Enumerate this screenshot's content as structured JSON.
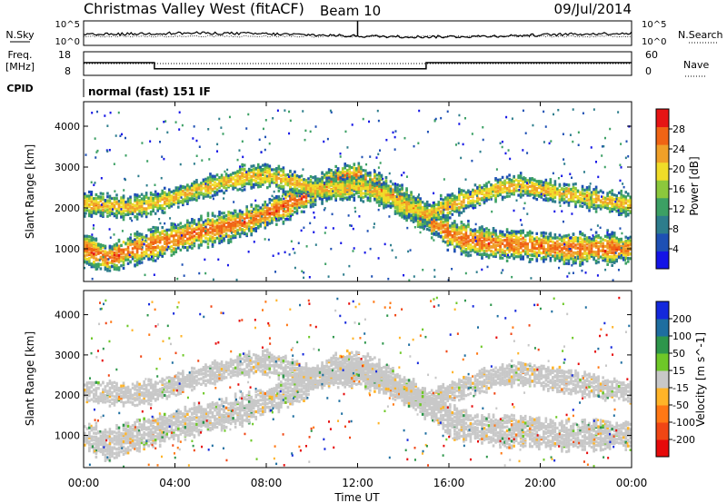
{
  "header": {
    "station": "Christmas Valley West (fitACF)",
    "beam": "Beam 10",
    "date": "09/Jul/2014"
  },
  "noise_panel": {
    "left_label": "N.Sky",
    "right_label": "N.Search",
    "left_ticks": [
      "10^5",
      "10^0"
    ],
    "right_ticks": [
      "10^5",
      "10^0"
    ]
  },
  "freq_panel": {
    "left_label_1": "Freq.",
    "left_label_2": "[MHz]",
    "left_ticks": [
      "18",
      "8"
    ],
    "right_label": "Nave",
    "right_ticks": [
      "60",
      "0"
    ],
    "freq_steps": [
      {
        "start_hour": 0.0,
        "end_hour": 3.1,
        "freq": 13.4
      },
      {
        "start_hour": 3.1,
        "end_hour": 15.0,
        "freq": 10.8
      },
      {
        "start_hour": 15.0,
        "end_hour": 24.0,
        "freq": 13.4
      }
    ]
  },
  "cpid": {
    "label": "CPID",
    "program": "normal (fast) 151 IF"
  },
  "chart_data": [
    {
      "type": "heatmap",
      "panel": "power",
      "ylabel": "Slant Range [km]",
      "yticks": [
        1000,
        2000,
        3000,
        4000
      ],
      "ylim": [
        200,
        4600
      ],
      "colorbar_label": "Power [dB]",
      "colorbar_ticks": [
        4,
        8,
        12,
        16,
        20,
        24,
        28
      ],
      "colorbar_range": [
        0,
        32
      ],
      "colors": [
        "#1414e6",
        "#1e50b4",
        "#2d7d8c",
        "#3ca064",
        "#8cc83c",
        "#f0dc28",
        "#f0a028",
        "#f06414",
        "#e61414"
      ],
      "bands": [
        {
          "time": [
            0,
            1,
            2,
            3,
            4,
            5,
            6,
            7,
            8,
            9,
            10,
            11,
            12,
            13,
            14,
            15,
            16,
            17,
            18,
            19,
            20,
            21,
            22,
            23,
            24
          ],
          "range": [
            1050,
            800,
            1000,
            1150,
            1300,
            1450,
            1550,
            1700,
            1900,
            2150,
            2450,
            2700,
            2800,
            2500,
            2200,
            1800,
            1400,
            1250,
            1150,
            1150,
            1100,
            1050,
            1050,
            1050,
            1050
          ],
          "thickness": 320,
          "power": 26
        },
        {
          "time": [
            0,
            1,
            2,
            3,
            4,
            5,
            6,
            7,
            8,
            9,
            10,
            11,
            12,
            13,
            14,
            15,
            16,
            17,
            18,
            19,
            20,
            21,
            22,
            23,
            24
          ],
          "range": [
            2150,
            2100,
            2050,
            2150,
            2300,
            2500,
            2650,
            2800,
            2850,
            2700,
            2500,
            2500,
            2550,
            2400,
            2100,
            1900,
            2100,
            2300,
            2500,
            2600,
            2500,
            2400,
            2300,
            2200,
            2100
          ],
          "thickness": 240,
          "power": 22
        }
      ]
    },
    {
      "type": "heatmap",
      "panel": "velocity",
      "xlabel": "Time UT",
      "ylabel": "Slant Range [km]",
      "xticks": [
        "00:00",
        "04:00",
        "08:00",
        "12:00",
        "16:00",
        "20:00",
        "00:00"
      ],
      "xlim": [
        0,
        24
      ],
      "yticks": [
        1000,
        2000,
        3000,
        4000
      ],
      "ylim": [
        200,
        4600
      ],
      "colorbar_label": "Velocity [m s^-1]",
      "colorbar_ticks": [
        200,
        100,
        50,
        15,
        -15,
        -50,
        -100,
        -200
      ],
      "colors": [
        "#1428dc",
        "#1e6ea0",
        "#2d964b",
        "#6ec828",
        "#c8c8c8",
        "#ffb428",
        "#ff7814",
        "#f04614",
        "#e60a0a"
      ],
      "dominant_velocity": 0
    }
  ]
}
